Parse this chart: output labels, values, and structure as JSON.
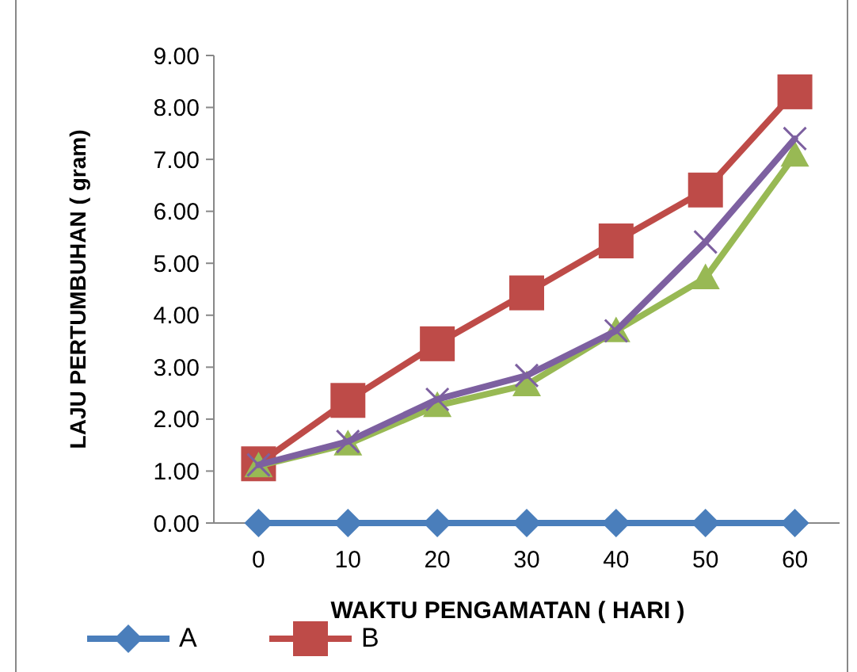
{
  "chart_data": {
    "type": "line",
    "xlabel": "WAKTU PENGAMATAN ( HARI )",
    "ylabel": "LAJU PERTUMBUHAN ( gram)",
    "categories": [
      "0",
      "10",
      "20",
      "30",
      "40",
      "50",
      "60"
    ],
    "series": [
      {
        "name": "A",
        "color": "#4a7ebb",
        "marker": "diamond",
        "values": [
          0,
          0,
          0,
          0,
          0,
          0,
          0
        ]
      },
      {
        "name": "B",
        "color": "#be4b48",
        "marker": "square",
        "values": [
          1.14,
          2.36,
          3.45,
          4.43,
          5.43,
          6.41,
          8.3
        ]
      },
      {
        "color": "#98b954",
        "marker": "triangle",
        "values": [
          1.1,
          1.52,
          2.26,
          2.66,
          3.7,
          4.72,
          7.08
        ]
      },
      {
        "color": "#7d60a0",
        "marker": "cross",
        "values": [
          1.12,
          1.57,
          2.38,
          2.84,
          3.7,
          5.41,
          7.4
        ]
      }
    ],
    "ylim": [
      0,
      9
    ],
    "yticks": [
      {
        "value": 0,
        "label": "0.00"
      },
      {
        "value": 1,
        "label": "1.00"
      },
      {
        "value": 2,
        "label": "2.00"
      },
      {
        "value": 3,
        "label": "3.00"
      },
      {
        "value": 4,
        "label": "4.00"
      },
      {
        "value": 5,
        "label": "5.00"
      },
      {
        "value": 6,
        "label": "6.00"
      },
      {
        "value": 7,
        "label": "7.00"
      },
      {
        "value": 8,
        "label": "8.00"
      },
      {
        "value": 9,
        "label": "9.00"
      }
    ],
    "grid": false,
    "legend": "bottom"
  }
}
